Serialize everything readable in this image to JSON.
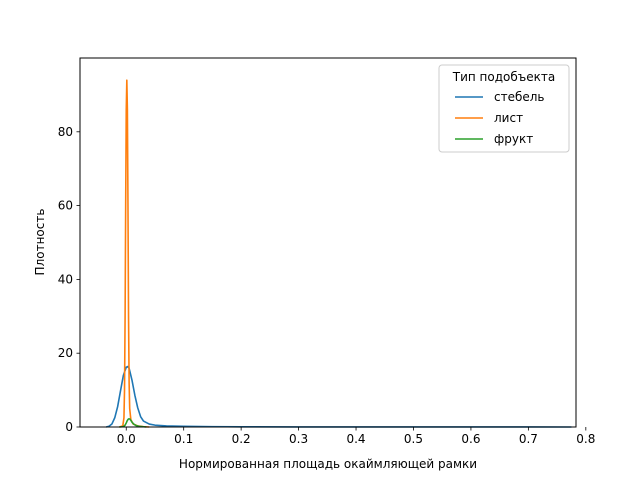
{
  "chart_data": {
    "type": "line",
    "title": "",
    "xlabel": "Нормированная площадь окаймляющей рамки",
    "ylabel": "Плотность",
    "xlim": [
      -0.0805,
      0.7829
    ],
    "ylim": [
      0,
      100
    ],
    "xticks": [
      0.0,
      0.1,
      0.2,
      0.3,
      0.4,
      0.5,
      0.6,
      0.7,
      0.8
    ],
    "xtick_labels": [
      "0.0",
      "0.1",
      "0.2",
      "0.3",
      "0.4",
      "0.5",
      "0.6",
      "0.7",
      "0.8"
    ],
    "yticks": [
      0,
      20,
      40,
      60,
      80
    ],
    "ytick_labels": [
      "0",
      "20",
      "40",
      "60",
      "80"
    ],
    "grid": false,
    "legend": {
      "title": "Тип подобъекта",
      "position": "top-right"
    },
    "series": [
      {
        "name": "стебель",
        "color": "#1f77b4",
        "x": [
          -0.035,
          -0.03,
          -0.025,
          -0.02,
          -0.015,
          -0.01,
          -0.005,
          0.0,
          0.003,
          0.005,
          0.01,
          0.015,
          0.02,
          0.025,
          0.03,
          0.04,
          0.05,
          0.07,
          0.1,
          0.15,
          0.2,
          0.3,
          0.4,
          0.5,
          0.6,
          0.7,
          0.775
        ],
        "y": [
          0.0,
          0.2,
          0.8,
          2.5,
          5.5,
          9.8,
          14.0,
          16.2,
          16.4,
          15.9,
          12.7,
          8.6,
          5.2,
          2.8,
          1.6,
          0.8,
          0.5,
          0.3,
          0.2,
          0.1,
          0.05,
          0.03,
          0.02,
          0.02,
          0.02,
          0.02,
          0.0
        ]
      },
      {
        "name": "лист",
        "color": "#ff7f0e",
        "x": [
          -0.012,
          -0.006,
          -0.004,
          -0.003,
          -0.002,
          -0.001,
          0.0,
          0.001,
          0.002,
          0.003,
          0.004,
          0.005,
          0.006,
          0.008,
          0.012,
          0.02,
          0.03,
          0.04
        ],
        "y": [
          0.0,
          0.3,
          2.5,
          10.0,
          30.0,
          60.0,
          86.0,
          94.0,
          86.0,
          60.0,
          30.0,
          12.0,
          5.0,
          2.0,
          0.8,
          0.3,
          0.1,
          0.0
        ]
      },
      {
        "name": "фрукт",
        "color": "#2ca02c",
        "x": [
          -0.012,
          -0.005,
          -0.002,
          0.0,
          0.002,
          0.004,
          0.006,
          0.008,
          0.01,
          0.013,
          0.017,
          0.022,
          0.028,
          0.035
        ],
        "y": [
          0.0,
          0.1,
          0.5,
          1.1,
          1.8,
          2.2,
          2.2,
          1.8,
          1.3,
          0.8,
          0.4,
          0.2,
          0.1,
          0.0
        ]
      }
    ]
  }
}
